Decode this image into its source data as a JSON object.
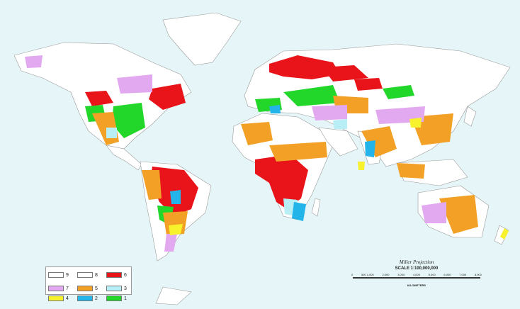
{
  "legend": [
    {
      "label": "9",
      "color": "#ffffff"
    },
    {
      "label": "8",
      "color": "#ffffff"
    },
    {
      "label": "6",
      "color": "#e8141a"
    },
    {
      "label": "7",
      "color": "#e2a8f0"
    },
    {
      "label": "5",
      "color": "#f2a126"
    },
    {
      "label": "3",
      "color": "#b8eef6"
    },
    {
      "label": "4",
      "color": "#f7f22c"
    },
    {
      "label": "2",
      "color": "#23b5ea"
    },
    {
      "label": "1",
      "color": "#22d62a"
    }
  ],
  "colors": {
    "ocean": "#e6f6f8",
    "land": "#ffffff",
    "outline": "#9a9a9a"
  },
  "scale": {
    "projection": "Miller Projection",
    "scale_text": "SCALE 1:100,000,000",
    "ticks": [
      "0",
      "500 1,000",
      "2,000",
      "3,000",
      "4,000",
      "5,000",
      "6,000",
      "7,000",
      "8,000"
    ],
    "units": "KILOMETERS"
  }
}
